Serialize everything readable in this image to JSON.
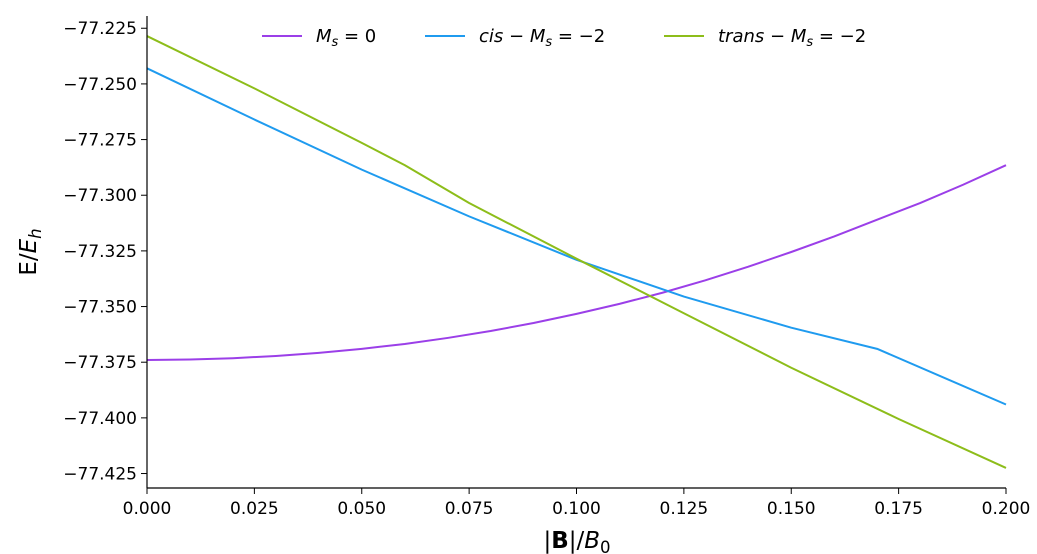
{
  "chart_data": {
    "type": "line",
    "xlabel_parts": [
      {
        "t": "|",
        "style": "normal"
      },
      {
        "t": "B",
        "style": "bold"
      },
      {
        "t": "|/",
        "style": "normal"
      },
      {
        "t": "B",
        "style": "italic"
      },
      {
        "t": "0",
        "style": "sub"
      }
    ],
    "ylabel_parts": [
      {
        "t": "E/",
        "style": "normal"
      },
      {
        "t": "E",
        "style": "italic"
      },
      {
        "t": "h",
        "style": "sub-italic"
      }
    ],
    "xlim": [
      0.0,
      0.2
    ],
    "ylim": [
      -77.4315,
      -77.2195
    ],
    "x_ticks": [
      0.0,
      0.025,
      0.05,
      0.075,
      0.1,
      0.125,
      0.15,
      0.175,
      0.2
    ],
    "x_tick_labels": [
      "0.000",
      "0.025",
      "0.050",
      "0.075",
      "0.100",
      "0.125",
      "0.150",
      "0.175",
      "0.200"
    ],
    "y_ticks": [
      -77.225,
      -77.25,
      -77.275,
      -77.3,
      -77.325,
      -77.35,
      -77.375,
      -77.4,
      -77.425
    ],
    "y_tick_labels": [
      "−77.225",
      "−77.250",
      "−77.275",
      "−77.300",
      "−77.325",
      "−77.350",
      "−77.375",
      "−77.400",
      "−77.425"
    ],
    "grid": false,
    "legend_position": "top",
    "series": [
      {
        "name_parts": [
          {
            "t": "M",
            "style": "italic"
          },
          {
            "t": "s",
            "style": "sub-italic"
          },
          {
            "t": " = 0",
            "style": "normal"
          }
        ],
        "color": "#9b3fe8",
        "x": [
          0.0,
          0.01,
          0.02,
          0.03,
          0.04,
          0.05,
          0.06,
          0.07,
          0.08,
          0.09,
          0.1,
          0.11,
          0.12,
          0.13,
          0.14,
          0.15,
          0.16,
          0.17,
          0.18,
          0.19,
          0.2
        ],
        "y": [
          -77.374,
          -77.3738,
          -77.3732,
          -77.3722,
          -77.3708,
          -77.369,
          -77.3668,
          -77.3641,
          -77.361,
          -77.3574,
          -77.3533,
          -77.3488,
          -77.3438,
          -77.3382,
          -77.3321,
          -77.3255,
          -77.3185,
          -77.311,
          -77.3035,
          -77.2953,
          -77.2865
        ]
      },
      {
        "name_parts": [
          {
            "t": "cis",
            "style": "italic"
          },
          {
            "t": " − ",
            "style": "normal"
          },
          {
            "t": "M",
            "style": "italic"
          },
          {
            "t": "s",
            "style": "sub-italic"
          },
          {
            "t": " = −2",
            "style": "normal"
          }
        ],
        "color": "#1f9bef",
        "x": [
          0.0,
          0.025,
          0.05,
          0.075,
          0.1,
          0.125,
          0.15,
          0.17,
          0.2
        ],
        "y": [
          -77.243,
          -77.266,
          -77.2885,
          -77.3095,
          -77.329,
          -77.3455,
          -77.3595,
          -77.369,
          -77.394
        ]
      },
      {
        "name_parts": [
          {
            "t": "trans",
            "style": "italic"
          },
          {
            "t": " − ",
            "style": "normal"
          },
          {
            "t": "M",
            "style": "italic"
          },
          {
            "t": "s",
            "style": "sub-italic"
          },
          {
            "t": " = −2",
            "style": "normal"
          }
        ],
        "color": "#8dbd1a",
        "x": [
          0.0,
          0.025,
          0.05,
          0.06,
          0.075,
          0.1,
          0.125,
          0.15,
          0.175,
          0.2
        ],
        "y": [
          -77.2285,
          -77.252,
          -77.2765,
          -77.2865,
          -77.3035,
          -77.3285,
          -77.353,
          -77.3775,
          -77.4005,
          -77.4225
        ]
      }
    ]
  }
}
